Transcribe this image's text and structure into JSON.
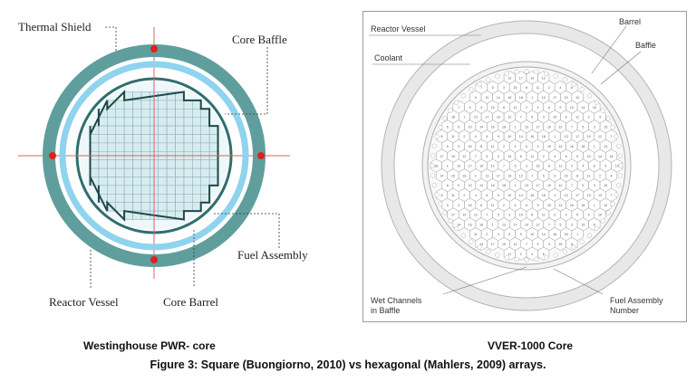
{
  "left_diagram": {
    "labels": {
      "thermal_shield": "Thermal Shield",
      "core_baffle": "Core Baffle",
      "fuel_assembly": "Fuel Assembly",
      "reactor_vessel": "Reactor Vessel",
      "core_barrel": "Core Barrel"
    },
    "colors": {
      "vessel": "#5f9e9c",
      "vessel_edge": "#3d7a78",
      "thermal_shield": "#8fd3ef",
      "core_barrel": "#2f6f6e",
      "core_region": "#d8ecf0",
      "grid": "#8fb7c0",
      "baffle": "#1e4848",
      "crosshair": "#e06060",
      "marker": "#e02020"
    }
  },
  "right_diagram": {
    "labels": {
      "reactor_vessel": "Reactor Vessel",
      "barrel": "Barrel",
      "baffle": "Baffle",
      "coolant": "Coolant",
      "wet_channels_line1": "Wet Channels",
      "wet_channels_line2": "in Baffle",
      "fuel_assembly_number_line1": "Fuel Assembly",
      "fuel_assembly_number_line2": "Number"
    },
    "colors": {
      "vessel_ring": "#e6e6e6",
      "outline": "#b0b0b0",
      "hex_fill": "#ffffff",
      "hex_stroke": "#9a9a9a",
      "number_text": "#555555"
    }
  },
  "captions": {
    "left": "Westinghouse PWR- core",
    "right": "VVER-1000 Core",
    "figure": "Figure 3: Square (Buongiorno, 2010) vs hexagonal (Mahlers, 2009) arrays."
  }
}
